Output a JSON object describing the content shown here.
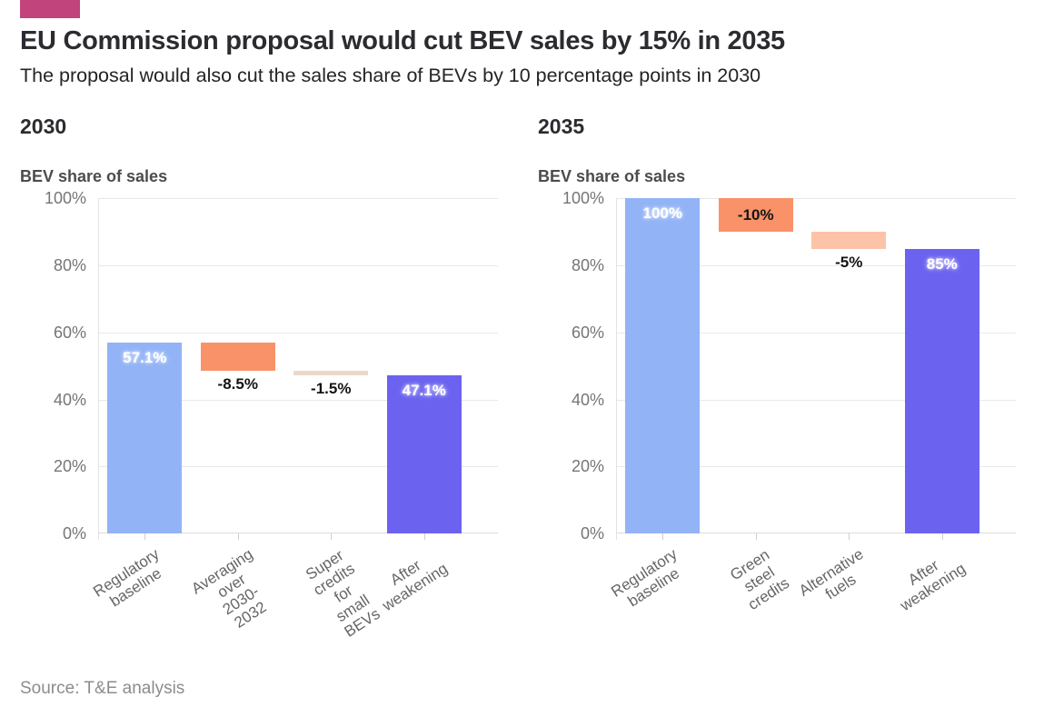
{
  "header": {
    "brand_color": "#c2447c",
    "title": "EU Commission proposal would cut BEV sales by 15% in 2035",
    "subtitle": "The proposal would also cut the sales share of BEVs by 10 percentage points in 2030"
  },
  "footer": {
    "source": "Source: T&E analysis"
  },
  "chart_data": [
    {
      "type": "bar",
      "subtype": "waterfall",
      "panel_title": "2030",
      "axis_title": "BEV share of sales",
      "ylabel": "BEV share of sales",
      "ylim": [
        0,
        100
      ],
      "yticks": [
        0,
        20,
        40,
        60,
        80,
        100
      ],
      "ytick_suffix": "%",
      "grid": true,
      "legend": "none",
      "categories": [
        "Regulatory\nbaseline",
        "Averaging over\n2030-2032",
        "Super credits for\nsmall BEVs",
        "After weakening"
      ],
      "bars": [
        {
          "category": "Regulatory baseline",
          "start": 0,
          "end": 57.1,
          "value": 57.1,
          "label": "57.1%",
          "color": "#92b3f6",
          "label_style": "inside-top-light"
        },
        {
          "category": "Averaging over 2030-2032",
          "start": 57.1,
          "end": 48.6,
          "value": -8.5,
          "label": "-8.5%",
          "color": "#f99268",
          "label_style": "below-dark"
        },
        {
          "category": "Super credits for small BEVs",
          "start": 48.6,
          "end": 47.1,
          "value": -1.5,
          "label": "-1.5%",
          "color": "#ead9c9",
          "label_style": "below-dark"
        },
        {
          "category": "After weakening",
          "start": 0,
          "end": 47.1,
          "value": 47.1,
          "label": "47.1%",
          "color": "#6b63f0",
          "label_style": "inside-top-light"
        }
      ]
    },
    {
      "type": "bar",
      "subtype": "waterfall",
      "panel_title": "2035",
      "axis_title": "BEV share of sales",
      "ylabel": "BEV share of sales",
      "ylim": [
        0,
        100
      ],
      "yticks": [
        0,
        20,
        40,
        60,
        80,
        100
      ],
      "ytick_suffix": "%",
      "grid": true,
      "legend": "none",
      "categories": [
        "Regulatory\nbaseline",
        "Green steel credits",
        "Alternative fuels",
        "After weakening"
      ],
      "bars": [
        {
          "category": "Regulatory baseline",
          "start": 0,
          "end": 100,
          "value": 100,
          "label": "100%",
          "color": "#92b3f6",
          "label_style": "inside-top-light"
        },
        {
          "category": "Green steel credits",
          "start": 100,
          "end": 90,
          "value": -10,
          "label": "-10%",
          "color": "#f99268",
          "label_style": "inside-middle-dark"
        },
        {
          "category": "Alternative fuels",
          "start": 90,
          "end": 85,
          "value": -5,
          "label": "-5%",
          "color": "#fcc3a8",
          "label_style": "below-dark"
        },
        {
          "category": "After weakening",
          "start": 0,
          "end": 85,
          "value": 85,
          "label": "85%",
          "color": "#6b63f0",
          "label_style": "inside-top-light"
        }
      ]
    }
  ]
}
